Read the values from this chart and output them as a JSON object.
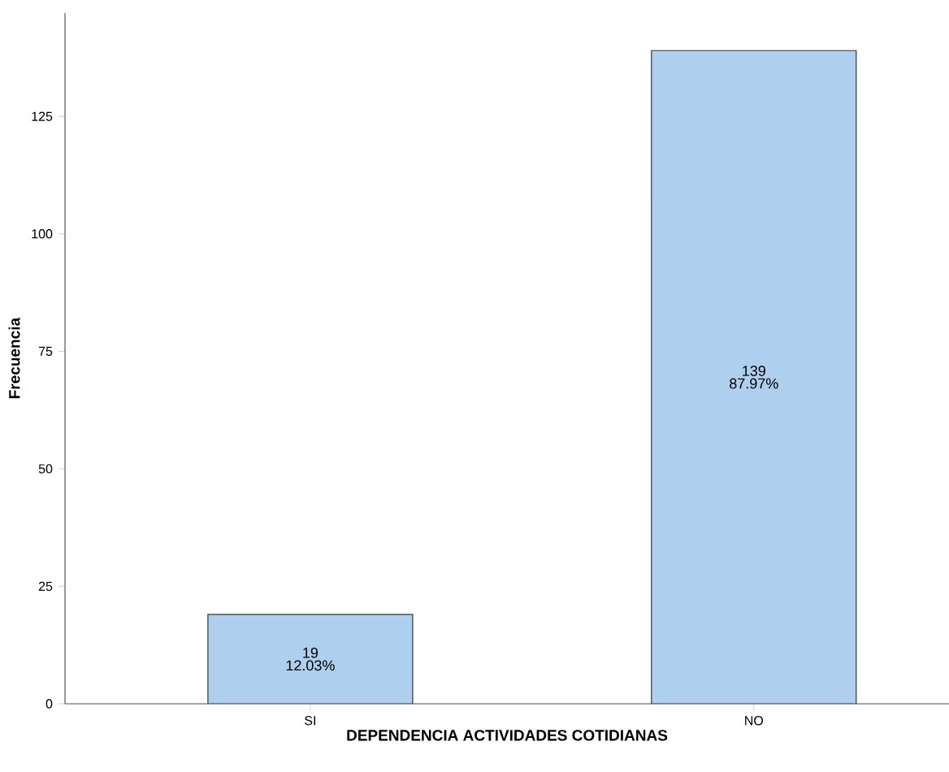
{
  "chart_data": {
    "type": "bar",
    "xlabel": "DEPENDENCIA ACTIVIDADES COTIDIANAS",
    "ylabel": "Frecuencia",
    "categories": [
      "SI",
      "NO"
    ],
    "values": [
      19,
      139
    ],
    "color": "#aed0ee",
    "ylim": [
      0,
      147
    ],
    "yticks": [
      0,
      25,
      50,
      75,
      100,
      125
    ],
    "data_labels": true,
    "annotations": [
      "12.03%",
      "87.97%"
    ]
  }
}
